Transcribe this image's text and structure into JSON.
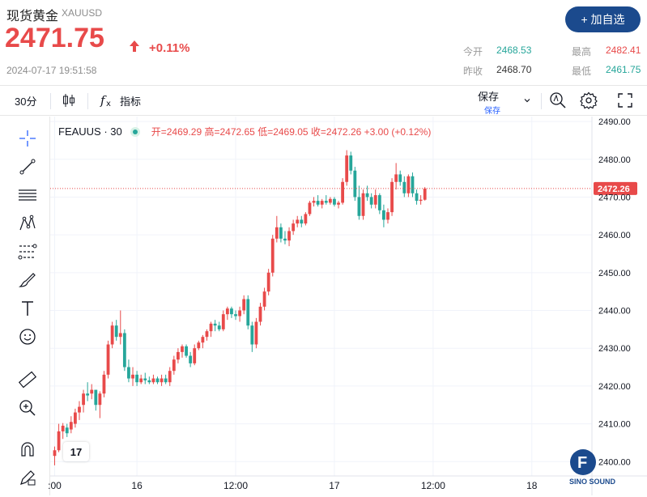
{
  "header": {
    "name": "现货黄金",
    "symbol": "XAUUSD",
    "add_button": "+ 加自选",
    "price": "2471.75",
    "change": "+0.11%",
    "timestamp": "2024-07-17 19:51:58",
    "stats": {
      "open_label": "今开",
      "open_value": "2468.53",
      "prev_close_label": "昨收",
      "prev_close_value": "2468.70",
      "high_label": "最高",
      "high_value": "2482.41",
      "low_label": "最低",
      "low_value": "2461.75"
    },
    "colors": {
      "up": "#e84a4a",
      "down": "#26a69a",
      "brand": "#1b4a8d"
    }
  },
  "toolbar": {
    "interval": "30分",
    "indicators": "指标",
    "save": "保存",
    "save_sub": "保存"
  },
  "left_tools": [
    "crosshair-icon",
    "trend-line-icon",
    "horizontal-lines-icon",
    "pattern-icon",
    "fib-icon",
    "brush-icon",
    "text-icon",
    "emoji-icon",
    "ruler-icon",
    "zoom-in-icon",
    "magnet-icon",
    "lock-pencil-icon"
  ],
  "legend": {
    "symbol": "FEAUUS · 30",
    "ohlc": "开=2469.29 高=2472.65 低=2469.05 收=2472.26 +3.00 (+0.12%)"
  },
  "logo": {
    "text": "17"
  },
  "watermark": {
    "text": "SINO SOUND",
    "letter": "F"
  },
  "chart_data": {
    "type": "candlestick",
    "y_ticks": [
      2400,
      2410,
      2420,
      2430,
      2440,
      2450,
      2460,
      2470,
      2480,
      2490
    ],
    "y_tick_labels": [
      "2400.00",
      "2410.00",
      "2420.00",
      "2430.00",
      "2440.00",
      "2450.00",
      "2460.00",
      "2470.00",
      "2480.00",
      "2490.00"
    ],
    "ylim": [
      2396.2,
      2491.3
    ],
    "x_ticks": [
      {
        "label": ":00",
        "index": 0
      },
      {
        "label": "16",
        "index": 20
      },
      {
        "label": "12:00",
        "index": 44
      },
      {
        "label": "17",
        "index": 68
      },
      {
        "label": "12:00",
        "index": 92
      },
      {
        "label": "18",
        "index": 116
      }
    ],
    "last_price": 2472.26,
    "last_price_label": "2472.26",
    "candles": [
      [
        2401.5,
        2404.0,
        2399.0,
        2403.0
      ],
      [
        2403.0,
        2410.0,
        2402.5,
        2408.0
      ],
      [
        2408.0,
        2410.2,
        2406.0,
        2409.5
      ],
      [
        2409.0,
        2410.0,
        2406.5,
        2407.5
      ],
      [
        2408.5,
        2412.0,
        2407.5,
        2410.5
      ],
      [
        2410.0,
        2414.0,
        2409.0,
        2413.0
      ],
      [
        2413.0,
        2416.0,
        2411.0,
        2414.5
      ],
      [
        2415.0,
        2419.0,
        2413.0,
        2418.0
      ],
      [
        2418.0,
        2421.0,
        2416.0,
        2417.5
      ],
      [
        2418.0,
        2420.5,
        2416.5,
        2419.0
      ],
      [
        2419.0,
        2418.6,
        2413.5,
        2415.0
      ],
      [
        2415.0,
        2418.6,
        2411.5,
        2418.0
      ],
      [
        2418.0,
        2424.0,
        2417.0,
        2423.0
      ],
      [
        2423.0,
        2432.0,
        2422.0,
        2431.0
      ],
      [
        2431.0,
        2437.0,
        2430.0,
        2436.0
      ],
      [
        2436.0,
        2437.5,
        2432.0,
        2433.0
      ],
      [
        2433.0,
        2440.0,
        2431.0,
        2434.0
      ],
      [
        2434.0,
        2435.0,
        2424.0,
        2425.0
      ],
      [
        2425.0,
        2427.0,
        2421.0,
        2422.0
      ],
      [
        2422.0,
        2425.0,
        2420.0,
        2423.0
      ],
      [
        2423.0,
        2424.0,
        2420.0,
        2421.0
      ],
      [
        2421.0,
        2423.0,
        2420.5,
        2422.0
      ],
      [
        2422.0,
        2423.5,
        2420.5,
        2421.5
      ],
      [
        2421.5,
        2422.5,
        2420.5,
        2421.0
      ],
      [
        2421.0,
        2423.0,
        2420.5,
        2422.0
      ],
      [
        2422.0,
        2422.5,
        2420.5,
        2421.0
      ],
      [
        2421.0,
        2423.0,
        2420.0,
        2422.0
      ],
      [
        2422.0,
        2423.0,
        2420.5,
        2421.0
      ],
      [
        2421.0,
        2425.0,
        2420.0,
        2424.0
      ],
      [
        2424.0,
        2428.0,
        2423.0,
        2427.0
      ],
      [
        2427.0,
        2430.0,
        2426.0,
        2429.0
      ],
      [
        2429.0,
        2431.0,
        2427.5,
        2430.5
      ],
      [
        2430.5,
        2431.0,
        2427.5,
        2428.0
      ],
      [
        2428.0,
        2429.0,
        2425.0,
        2426.0
      ],
      [
        2426.0,
        2431.0,
        2425.5,
        2430.0
      ],
      [
        2430.0,
        2432.0,
        2429.5,
        2431.5
      ],
      [
        2431.5,
        2433.5,
        2430.0,
        2433.0
      ],
      [
        2433.0,
        2435.0,
        2432.0,
        2434.5
      ],
      [
        2434.5,
        2437.0,
        2433.0,
        2436.5
      ],
      [
        2436.5,
        2437.5,
        2434.5,
        2436.0
      ],
      [
        2436.0,
        2437.0,
        2434.5,
        2435.0
      ],
      [
        2435.0,
        2440.0,
        2434.5,
        2439.0
      ],
      [
        2439.0,
        2441.0,
        2437.5,
        2440.5
      ],
      [
        2440.5,
        2441.0,
        2438.0,
        2439.0
      ],
      [
        2439.0,
        2440.0,
        2437.5,
        2438.5
      ],
      [
        2438.5,
        2441.0,
        2437.0,
        2440.0
      ],
      [
        2440.0,
        2444.0,
        2439.0,
        2443.0
      ],
      [
        2443.0,
        2444.0,
        2435.0,
        2436.0
      ],
      [
        2436.0,
        2437.0,
        2429.0,
        2431.0
      ],
      [
        2431.0,
        2438.0,
        2430.0,
        2437.0
      ],
      [
        2437.0,
        2442.0,
        2436.0,
        2441.0
      ],
      [
        2441.0,
        2446.0,
        2440.0,
        2445.0
      ],
      [
        2445.0,
        2451.0,
        2444.0,
        2450.0
      ],
      [
        2450.0,
        2460.0,
        2449.0,
        2459.0
      ],
      [
        2459.0,
        2465.0,
        2458.0,
        2462.0
      ],
      [
        2462.0,
        2463.0,
        2458.0,
        2459.0
      ],
      [
        2459.0,
        2461.0,
        2457.5,
        2458.5
      ],
      [
        2458.5,
        2462.0,
        2457.0,
        2461.0
      ],
      [
        2461.0,
        2464.0,
        2460.0,
        2463.0
      ],
      [
        2463.0,
        2465.0,
        2462.0,
        2464.0
      ],
      [
        2464.0,
        2465.0,
        2462.0,
        2463.0
      ],
      [
        2463.0,
        2466.0,
        2462.5,
        2465.5
      ],
      [
        2465.5,
        2469.0,
        2465.0,
        2468.5
      ],
      [
        2468.5,
        2470.0,
        2467.5,
        2469.0
      ],
      [
        2469.0,
        2470.5,
        2467.5,
        2468.0
      ],
      [
        2468.0,
        2469.5,
        2467.0,
        2469.0
      ],
      [
        2469.0,
        2470.5,
        2468.0,
        2468.5
      ],
      [
        2468.5,
        2470.0,
        2468.0,
        2469.5
      ],
      [
        2469.5,
        2470.0,
        2467.5,
        2468.0
      ],
      [
        2468.0,
        2469.0,
        2467.0,
        2468.5
      ],
      [
        2468.5,
        2475.0,
        2468.0,
        2474.0
      ],
      [
        2474.0,
        2482.4,
        2473.0,
        2481.0
      ],
      [
        2481.0,
        2482.0,
        2476.0,
        2477.0
      ],
      [
        2477.0,
        2478.0,
        2469.0,
        2470.0
      ],
      [
        2470.0,
        2473.0,
        2464.0,
        2465.0
      ],
      [
        2465.0,
        2472.0,
        2464.0,
        2471.0
      ],
      [
        2471.0,
        2473.0,
        2469.0,
        2470.0
      ],
      [
        2470.0,
        2471.0,
        2467.0,
        2468.0
      ],
      [
        2468.0,
        2472.0,
        2467.0,
        2470.5
      ],
      [
        2470.5,
        2471.0,
        2465.5,
        2466.5
      ],
      [
        2466.5,
        2468.0,
        2462.0,
        2464.0
      ],
      [
        2464.0,
        2467.0,
        2463.0,
        2466.0
      ],
      [
        2466.0,
        2475.0,
        2465.0,
        2474.0
      ],
      [
        2474.0,
        2479.0,
        2472.0,
        2476.0
      ],
      [
        2476.0,
        2477.0,
        2473.0,
        2474.0
      ],
      [
        2474.0,
        2475.5,
        2470.0,
        2471.0
      ],
      [
        2471.0,
        2476.0,
        2470.0,
        2475.5
      ],
      [
        2475.5,
        2476.5,
        2470.0,
        2471.0
      ],
      [
        2471.0,
        2472.0,
        2468.0,
        2469.0
      ],
      [
        2469.0,
        2470.5,
        2468.0,
        2469.3
      ],
      [
        2469.29,
        2472.65,
        2469.05,
        2472.26
      ]
    ]
  }
}
